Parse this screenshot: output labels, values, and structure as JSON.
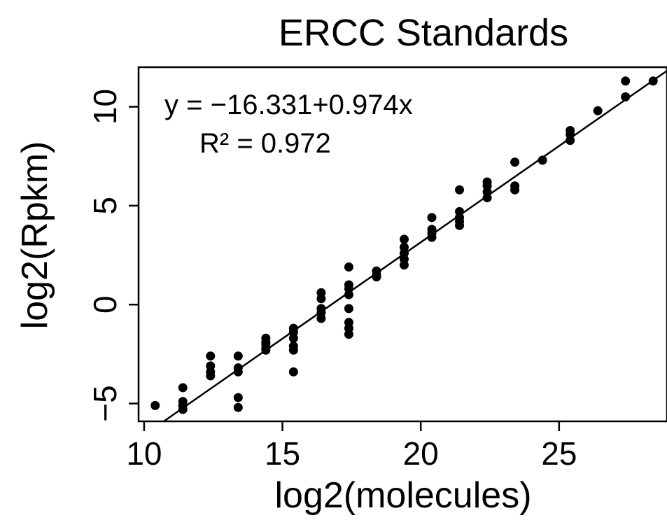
{
  "chart_data": {
    "type": "scatter",
    "title": "ERCC Standards",
    "xlabel": "log2(molecules)",
    "ylabel": "log2(Rpkm)",
    "xlim": [
      9.8,
      28.9
    ],
    "ylim": [
      -5.9,
      12.0
    ],
    "xticks": [
      10,
      15,
      20,
      25
    ],
    "yticks": [
      -5,
      0,
      5,
      10
    ],
    "xtick_labels": [
      "10",
      "15",
      "20",
      "25"
    ],
    "ytick_labels": [
      "−5",
      "0",
      "5",
      "10"
    ],
    "grid": false,
    "annotations": [
      "y = −16.331+0.974x",
      "R² = 0.972"
    ],
    "fit": {
      "intercept": -16.331,
      "slope": 0.974
    },
    "points": [
      {
        "x": 10.4,
        "y": -5.1
      },
      {
        "x": 11.4,
        "y": -4.2
      },
      {
        "x": 11.4,
        "y": -4.9
      },
      {
        "x": 11.4,
        "y": -5.1
      },
      {
        "x": 11.4,
        "y": -5.3
      },
      {
        "x": 12.4,
        "y": -2.6
      },
      {
        "x": 12.4,
        "y": -3.1
      },
      {
        "x": 12.4,
        "y": -3.4
      },
      {
        "x": 12.4,
        "y": -3.6
      },
      {
        "x": 13.4,
        "y": -2.6
      },
      {
        "x": 13.4,
        "y": -3.2
      },
      {
        "x": 13.4,
        "y": -3.4
      },
      {
        "x": 13.4,
        "y": -4.7
      },
      {
        "x": 13.4,
        "y": -5.2
      },
      {
        "x": 14.4,
        "y": -1.7
      },
      {
        "x": 14.4,
        "y": -1.9
      },
      {
        "x": 14.4,
        "y": -2.0
      },
      {
        "x": 14.4,
        "y": -2.2
      },
      {
        "x": 14.4,
        "y": -2.3
      },
      {
        "x": 15.4,
        "y": -1.2
      },
      {
        "x": 15.4,
        "y": -1.4
      },
      {
        "x": 15.4,
        "y": -1.7
      },
      {
        "x": 15.4,
        "y": -2.1
      },
      {
        "x": 15.4,
        "y": -2.3
      },
      {
        "x": 15.4,
        "y": -3.4
      },
      {
        "x": 16.4,
        "y": 0.6
      },
      {
        "x": 16.4,
        "y": 0.3
      },
      {
        "x": 16.4,
        "y": -0.2
      },
      {
        "x": 16.4,
        "y": -0.4
      },
      {
        "x": 16.4,
        "y": -0.7
      },
      {
        "x": 17.4,
        "y": 1.9
      },
      {
        "x": 17.4,
        "y": 1.0
      },
      {
        "x": 17.4,
        "y": 0.8
      },
      {
        "x": 17.4,
        "y": 0.5
      },
      {
        "x": 17.4,
        "y": -0.2
      },
      {
        "x": 17.4,
        "y": -0.9
      },
      {
        "x": 17.4,
        "y": -1.2
      },
      {
        "x": 17.4,
        "y": -1.5
      },
      {
        "x": 18.4,
        "y": 1.7
      },
      {
        "x": 18.4,
        "y": 1.5
      },
      {
        "x": 18.4,
        "y": 1.4
      },
      {
        "x": 19.4,
        "y": 3.3
      },
      {
        "x": 19.4,
        "y": 2.9
      },
      {
        "x": 19.4,
        "y": 2.6
      },
      {
        "x": 19.4,
        "y": 2.3
      },
      {
        "x": 19.4,
        "y": 2.0
      },
      {
        "x": 20.4,
        "y": 4.4
      },
      {
        "x": 20.4,
        "y": 3.8
      },
      {
        "x": 20.4,
        "y": 3.6
      },
      {
        "x": 20.4,
        "y": 3.4
      },
      {
        "x": 21.4,
        "y": 5.8
      },
      {
        "x": 21.4,
        "y": 4.7
      },
      {
        "x": 21.4,
        "y": 4.4
      },
      {
        "x": 21.4,
        "y": 4.2
      },
      {
        "x": 21.4,
        "y": 4.0
      },
      {
        "x": 22.4,
        "y": 6.2
      },
      {
        "x": 22.4,
        "y": 6.0
      },
      {
        "x": 22.4,
        "y": 5.7
      },
      {
        "x": 22.4,
        "y": 5.4
      },
      {
        "x": 23.4,
        "y": 7.2
      },
      {
        "x": 23.4,
        "y": 6.0
      },
      {
        "x": 23.4,
        "y": 5.8
      },
      {
        "x": 24.4,
        "y": 7.3
      },
      {
        "x": 25.4,
        "y": 8.8
      },
      {
        "x": 25.4,
        "y": 8.6
      },
      {
        "x": 25.4,
        "y": 8.3
      },
      {
        "x": 26.4,
        "y": 9.8
      },
      {
        "x": 27.4,
        "y": 11.3
      },
      {
        "x": 27.4,
        "y": 10.5
      },
      {
        "x": 28.4,
        "y": 11.3
      }
    ]
  }
}
